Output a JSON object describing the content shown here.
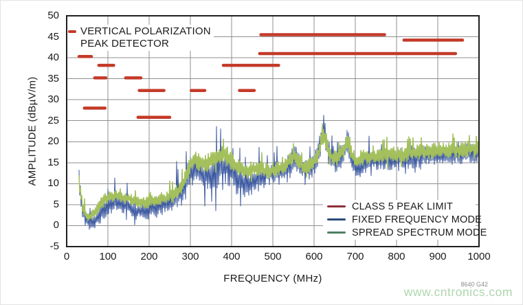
{
  "annotation": {
    "line1": "VERTICAL POLARIZATION",
    "line2": "PEAK DETECTOR"
  },
  "figure_id": "8640 G42",
  "watermark": "www.cntronics.com",
  "colors": {
    "background": "#ffffff",
    "grid": "#8f8f8f",
    "border": "#1f1f1f",
    "text": "#1a1a1a",
    "watermark": "#afd6af",
    "figure_id": "#8a8a8a"
  },
  "chart_data": {
    "type": "line",
    "title": "",
    "xlabel": "FREQUENCY (MHz)",
    "ylabel": "AMPLITUDE (dBµV/m)",
    "xlim": [
      0,
      1000
    ],
    "ylim": [
      -5,
      50
    ],
    "x_ticks": [
      0,
      100,
      200,
      300,
      400,
      500,
      600,
      700,
      800,
      900,
      1000
    ],
    "y_ticks": [
      50,
      45,
      40,
      35,
      30,
      25,
      20,
      15,
      10,
      5,
      0,
      -5
    ],
    "grid": true,
    "legend_position": "lower right",
    "noise_seed": 1337,
    "limit_segments": {
      "name": "CLASS 5 PEAK LIMIT",
      "color": "#c43a28",
      "legend_color": "#8c3038",
      "unit": "[MHz_start, MHz_stop, dBuV_per_m]",
      "segments": [
        [
          30,
          60,
          40.3
        ],
        [
          43,
          93,
          28.0
        ],
        [
          68,
          95,
          35.2
        ],
        [
          78,
          114,
          38.2
        ],
        [
          143,
          180,
          35.2
        ],
        [
          173,
          250,
          25.8
        ],
        [
          176,
          236,
          32.2
        ],
        [
          302,
          335,
          32.2
        ],
        [
          380,
          514,
          38.2
        ],
        [
          419,
          455,
          32.2
        ],
        [
          468,
          943,
          41.0
        ],
        [
          471,
          771,
          45.5
        ],
        [
          818,
          960,
          44.2
        ]
      ]
    },
    "series": [
      {
        "name": "FIXED FREQUENCY MODE",
        "color": "#3a57a0",
        "legend_color": "#29497b",
        "stroke_width": 1,
        "spike_prob": 0.13,
        "dip_prob": 0.09,
        "points_format": "[MHz, mid_dB, body_halfwidth_dB, spike_dB]",
        "points": [
          [
            30,
            12,
            3,
            3
          ],
          [
            33,
            8,
            3,
            3
          ],
          [
            38,
            4,
            2.5,
            4
          ],
          [
            45,
            2,
            2,
            4
          ],
          [
            55,
            0.5,
            1.8,
            3
          ],
          [
            62,
            0.5,
            1.8,
            3
          ],
          [
            70,
            1.5,
            2,
            5
          ],
          [
            78,
            2.5,
            2.5,
            8
          ],
          [
            85,
            3.5,
            3,
            10
          ],
          [
            92,
            4,
            2.5,
            7
          ],
          [
            100,
            4.5,
            2.5,
            5
          ],
          [
            110,
            5.5,
            2.5,
            5.5
          ],
          [
            120,
            5.5,
            2.5,
            4.5
          ],
          [
            130,
            5.5,
            2.5,
            5
          ],
          [
            140,
            5,
            2.5,
            4.5
          ],
          [
            150,
            4.5,
            2.5,
            5
          ],
          [
            160,
            4,
            2,
            4.5
          ],
          [
            170,
            3.5,
            2,
            5
          ],
          [
            180,
            3.5,
            2.5,
            7
          ],
          [
            190,
            3.5,
            2.5,
            8
          ],
          [
            200,
            4,
            2.5,
            6
          ],
          [
            210,
            4,
            2.5,
            6
          ],
          [
            220,
            4.5,
            2.5,
            7
          ],
          [
            230,
            5,
            3,
            8
          ],
          [
            240,
            5.5,
            3,
            9
          ],
          [
            250,
            6,
            3,
            9
          ],
          [
            260,
            6.5,
            3,
            8
          ],
          [
            270,
            7,
            3,
            8
          ],
          [
            280,
            8,
            3.5,
            9
          ],
          [
            290,
            10,
            4,
            10
          ],
          [
            300,
            12.5,
            4,
            9
          ],
          [
            310,
            13.5,
            4,
            8
          ],
          [
            320,
            13,
            4,
            8
          ],
          [
            330,
            12,
            4,
            8
          ],
          [
            340,
            12,
            4,
            9
          ],
          [
            350,
            12.5,
            4,
            10
          ],
          [
            360,
            13,
            4.5,
            11
          ],
          [
            370,
            13.5,
            4.5,
            12
          ],
          [
            380,
            14,
            4.5,
            11
          ],
          [
            390,
            14,
            4.5,
            11
          ],
          [
            400,
            13,
            4,
            10
          ],
          [
            410,
            11.5,
            4,
            9
          ],
          [
            420,
            10.5,
            3.5,
            8
          ],
          [
            430,
            10,
            3.5,
            8
          ],
          [
            440,
            10,
            3.5,
            8
          ],
          [
            450,
            10.5,
            3.5,
            8.5
          ],
          [
            460,
            11,
            3.5,
            7
          ],
          [
            470,
            11.5,
            3.5,
            6
          ],
          [
            480,
            12,
            3,
            4.5
          ],
          [
            495,
            12.5,
            3,
            4
          ],
          [
            510,
            12.5,
            3,
            4
          ],
          [
            525,
            13,
            3,
            4.5
          ],
          [
            540,
            14.5,
            3,
            4.5
          ],
          [
            552,
            16.5,
            3,
            3.5
          ],
          [
            560,
            15.5,
            3,
            3.5
          ],
          [
            572,
            13.5,
            2.5,
            3.5
          ],
          [
            585,
            13.5,
            2.5,
            3.5
          ],
          [
            598,
            14.5,
            3,
            4
          ],
          [
            610,
            16.5,
            3.5,
            4.5
          ],
          [
            618,
            20.5,
            3.5,
            4
          ],
          [
            623,
            23,
            3.5,
            4
          ],
          [
            628,
            21,
            3.5,
            4
          ],
          [
            636,
            17,
            3,
            4
          ],
          [
            645,
            15.5,
            3,
            3.5
          ],
          [
            655,
            15.5,
            3,
            3.5
          ],
          [
            665,
            16.5,
            3,
            4
          ],
          [
            674,
            18,
            3,
            4
          ],
          [
            681,
            20.5,
            3,
            3.5
          ],
          [
            687,
            18,
            3,
            3.5
          ],
          [
            694,
            15,
            2.5,
            3
          ],
          [
            702,
            13.5,
            2.5,
            3
          ],
          [
            712,
            14,
            2.5,
            3.5
          ],
          [
            725,
            15,
            2.5,
            4
          ],
          [
            740,
            15.5,
            2.5,
            4
          ],
          [
            760,
            15.5,
            2.5,
            4.5
          ],
          [
            780,
            15.5,
            2.5,
            4
          ],
          [
            800,
            16,
            2.5,
            4
          ],
          [
            820,
            16,
            2.5,
            4.5
          ],
          [
            840,
            16,
            2.5,
            4
          ],
          [
            860,
            16.5,
            2.5,
            4
          ],
          [
            880,
            16.5,
            2.5,
            4.5
          ],
          [
            900,
            16.5,
            2.5,
            4
          ],
          [
            920,
            17,
            2.5,
            4
          ],
          [
            940,
            17,
            2.5,
            4.5
          ],
          [
            960,
            17,
            2.5,
            4
          ],
          [
            980,
            17.5,
            2.5,
            4
          ],
          [
            1000,
            17.5,
            2.5,
            4.5
          ]
        ]
      },
      {
        "name": "SPREAD SPECTRUM MODE",
        "color": "#a4c05d",
        "legend_color": "#4e7f63",
        "stroke_width": 1.5,
        "spike_prob": 0.1,
        "dip_prob": 0.04,
        "points_format": "[MHz, mid_dB, body_halfwidth_dB, spike_dB]",
        "points": [
          [
            30,
            11,
            2,
            2
          ],
          [
            34,
            7.5,
            2,
            2
          ],
          [
            40,
            4,
            1.5,
            2
          ],
          [
            48,
            2.5,
            1.5,
            2
          ],
          [
            55,
            2,
            1.5,
            2
          ],
          [
            62,
            2.5,
            1.5,
            2
          ],
          [
            70,
            3.5,
            1.5,
            2
          ],
          [
            78,
            4.5,
            1.5,
            2
          ],
          [
            85,
            5.5,
            1.5,
            2.5
          ],
          [
            92,
            6,
            1.5,
            2
          ],
          [
            100,
            6.5,
            1.5,
            2
          ],
          [
            110,
            7,
            1.5,
            2.5
          ],
          [
            120,
            7,
            1.5,
            2.5
          ],
          [
            130,
            7,
            1.5,
            2.5
          ],
          [
            140,
            6.5,
            1.5,
            2
          ],
          [
            150,
            6.5,
            1.5,
            2
          ],
          [
            160,
            6,
            1.5,
            2
          ],
          [
            170,
            5.5,
            1.5,
            2
          ],
          [
            180,
            5.5,
            1.5,
            2
          ],
          [
            190,
            5.5,
            1.5,
            2.5
          ],
          [
            200,
            5.5,
            1.5,
            2.5
          ],
          [
            210,
            6,
            1.5,
            2.5
          ],
          [
            220,
            6,
            1.5,
            2.5
          ],
          [
            230,
            6.5,
            1.5,
            2.5
          ],
          [
            240,
            6.5,
            1.5,
            3
          ],
          [
            250,
            7,
            1.5,
            3
          ],
          [
            260,
            7.5,
            2,
            3
          ],
          [
            270,
            8,
            2,
            3
          ],
          [
            280,
            9,
            2,
            3
          ],
          [
            290,
            11.5,
            2.5,
            3
          ],
          [
            300,
            14.5,
            2.5,
            3
          ],
          [
            310,
            16,
            2.5,
            3
          ],
          [
            320,
            15.5,
            2.5,
            2.5
          ],
          [
            330,
            14.5,
            2.5,
            2.5
          ],
          [
            340,
            15,
            2.5,
            3
          ],
          [
            350,
            15.5,
            2.5,
            3
          ],
          [
            360,
            16,
            2.5,
            3
          ],
          [
            370,
            17,
            2.5,
            3
          ],
          [
            380,
            17,
            2.5,
            3
          ],
          [
            390,
            16.5,
            2.5,
            3
          ],
          [
            400,
            15.5,
            2.5,
            2.5
          ],
          [
            410,
            14.5,
            2,
            2.5
          ],
          [
            420,
            13.5,
            2,
            2.5
          ],
          [
            430,
            13,
            2,
            2.5
          ],
          [
            440,
            13,
            2,
            2.5
          ],
          [
            450,
            13.5,
            2,
            2.5
          ],
          [
            460,
            13.5,
            2,
            2.5
          ],
          [
            470,
            13.5,
            2,
            2.5
          ],
          [
            480,
            13,
            2,
            2
          ],
          [
            495,
            13,
            2,
            2
          ],
          [
            510,
            13.5,
            2,
            2
          ],
          [
            525,
            14,
            2,
            2.5
          ],
          [
            540,
            15.5,
            2,
            2.5
          ],
          [
            552,
            16.5,
            2,
            2
          ],
          [
            560,
            15.5,
            2,
            2
          ],
          [
            572,
            14,
            2,
            2
          ],
          [
            585,
            14,
            2,
            2
          ],
          [
            598,
            15,
            2,
            2.5
          ],
          [
            610,
            17,
            2.5,
            2.5
          ],
          [
            618,
            20,
            2.5,
            2.5
          ],
          [
            623,
            22,
            2.5,
            2
          ],
          [
            628,
            20.5,
            2.5,
            2
          ],
          [
            636,
            17.5,
            2,
            2
          ],
          [
            645,
            16,
            2,
            2
          ],
          [
            655,
            16,
            2,
            2
          ],
          [
            665,
            17,
            2,
            2.5
          ],
          [
            674,
            18.5,
            2,
            2.5
          ],
          [
            681,
            20,
            2,
            2
          ],
          [
            687,
            18.5,
            2,
            2
          ],
          [
            694,
            16.5,
            2,
            2
          ],
          [
            702,
            15.5,
            2,
            2.5
          ],
          [
            712,
            16,
            2,
            3
          ],
          [
            725,
            16.5,
            2,
            3
          ],
          [
            740,
            16.5,
            2,
            3
          ],
          [
            760,
            16.5,
            2,
            3
          ],
          [
            780,
            17,
            2,
            3
          ],
          [
            800,
            17,
            2,
            3
          ],
          [
            820,
            17,
            2,
            3
          ],
          [
            840,
            17.5,
            2,
            3
          ],
          [
            860,
            17.5,
            2,
            3
          ],
          [
            880,
            17.5,
            2,
            3
          ],
          [
            900,
            18,
            2,
            3
          ],
          [
            920,
            18,
            2,
            3
          ],
          [
            940,
            18,
            2,
            3
          ],
          [
            960,
            18,
            2,
            3
          ],
          [
            980,
            18.5,
            2,
            3
          ],
          [
            1000,
            18.5,
            2,
            3
          ]
        ]
      }
    ]
  }
}
